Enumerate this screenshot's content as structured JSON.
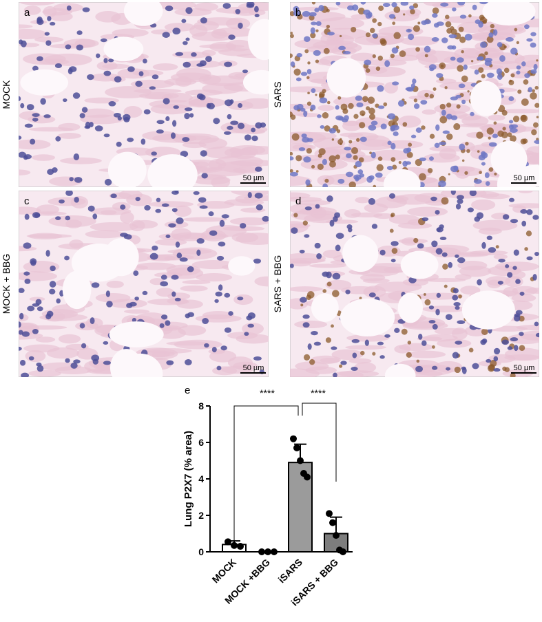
{
  "panels": [
    {
      "letter": "a",
      "side_label": "MOCK",
      "scale_bar": "50 µm"
    },
    {
      "letter": "b",
      "side_label": "SARS",
      "scale_bar": "50 µm"
    },
    {
      "letter": "c",
      "side_label": "MOCK + BBG",
      "scale_bar": "50 µm"
    },
    {
      "letter": "d",
      "side_label": "SARS + BBG",
      "scale_bar": "50 µm"
    }
  ],
  "chart_data": {
    "type": "bar",
    "panel_letter": "e",
    "y_label": "Lung P2X7 (% area)",
    "categories": [
      "MOCK",
      "MOCK +BBG",
      "iSARS",
      "iSARS + BBG"
    ],
    "values": [
      0.4,
      0.0,
      4.9,
      1.0
    ],
    "errors": [
      0.2,
      0.0,
      1.0,
      0.9
    ],
    "points": [
      [
        0.55,
        0.35,
        0.3
      ],
      [
        0.0,
        0.0,
        0.0
      ],
      [
        6.2,
        5.7,
        5.0,
        4.3,
        4.1
      ],
      [
        2.1,
        1.6,
        0.9,
        0.1,
        0.0
      ]
    ],
    "colors": [
      "#ffffff",
      "#ffffff",
      "#9b9b9b",
      "#7d7d7d"
    ],
    "ylim": [
      0,
      8
    ],
    "yticks": [
      0,
      2,
      4,
      6,
      8
    ],
    "annotations": [
      "****",
      "****"
    ]
  }
}
